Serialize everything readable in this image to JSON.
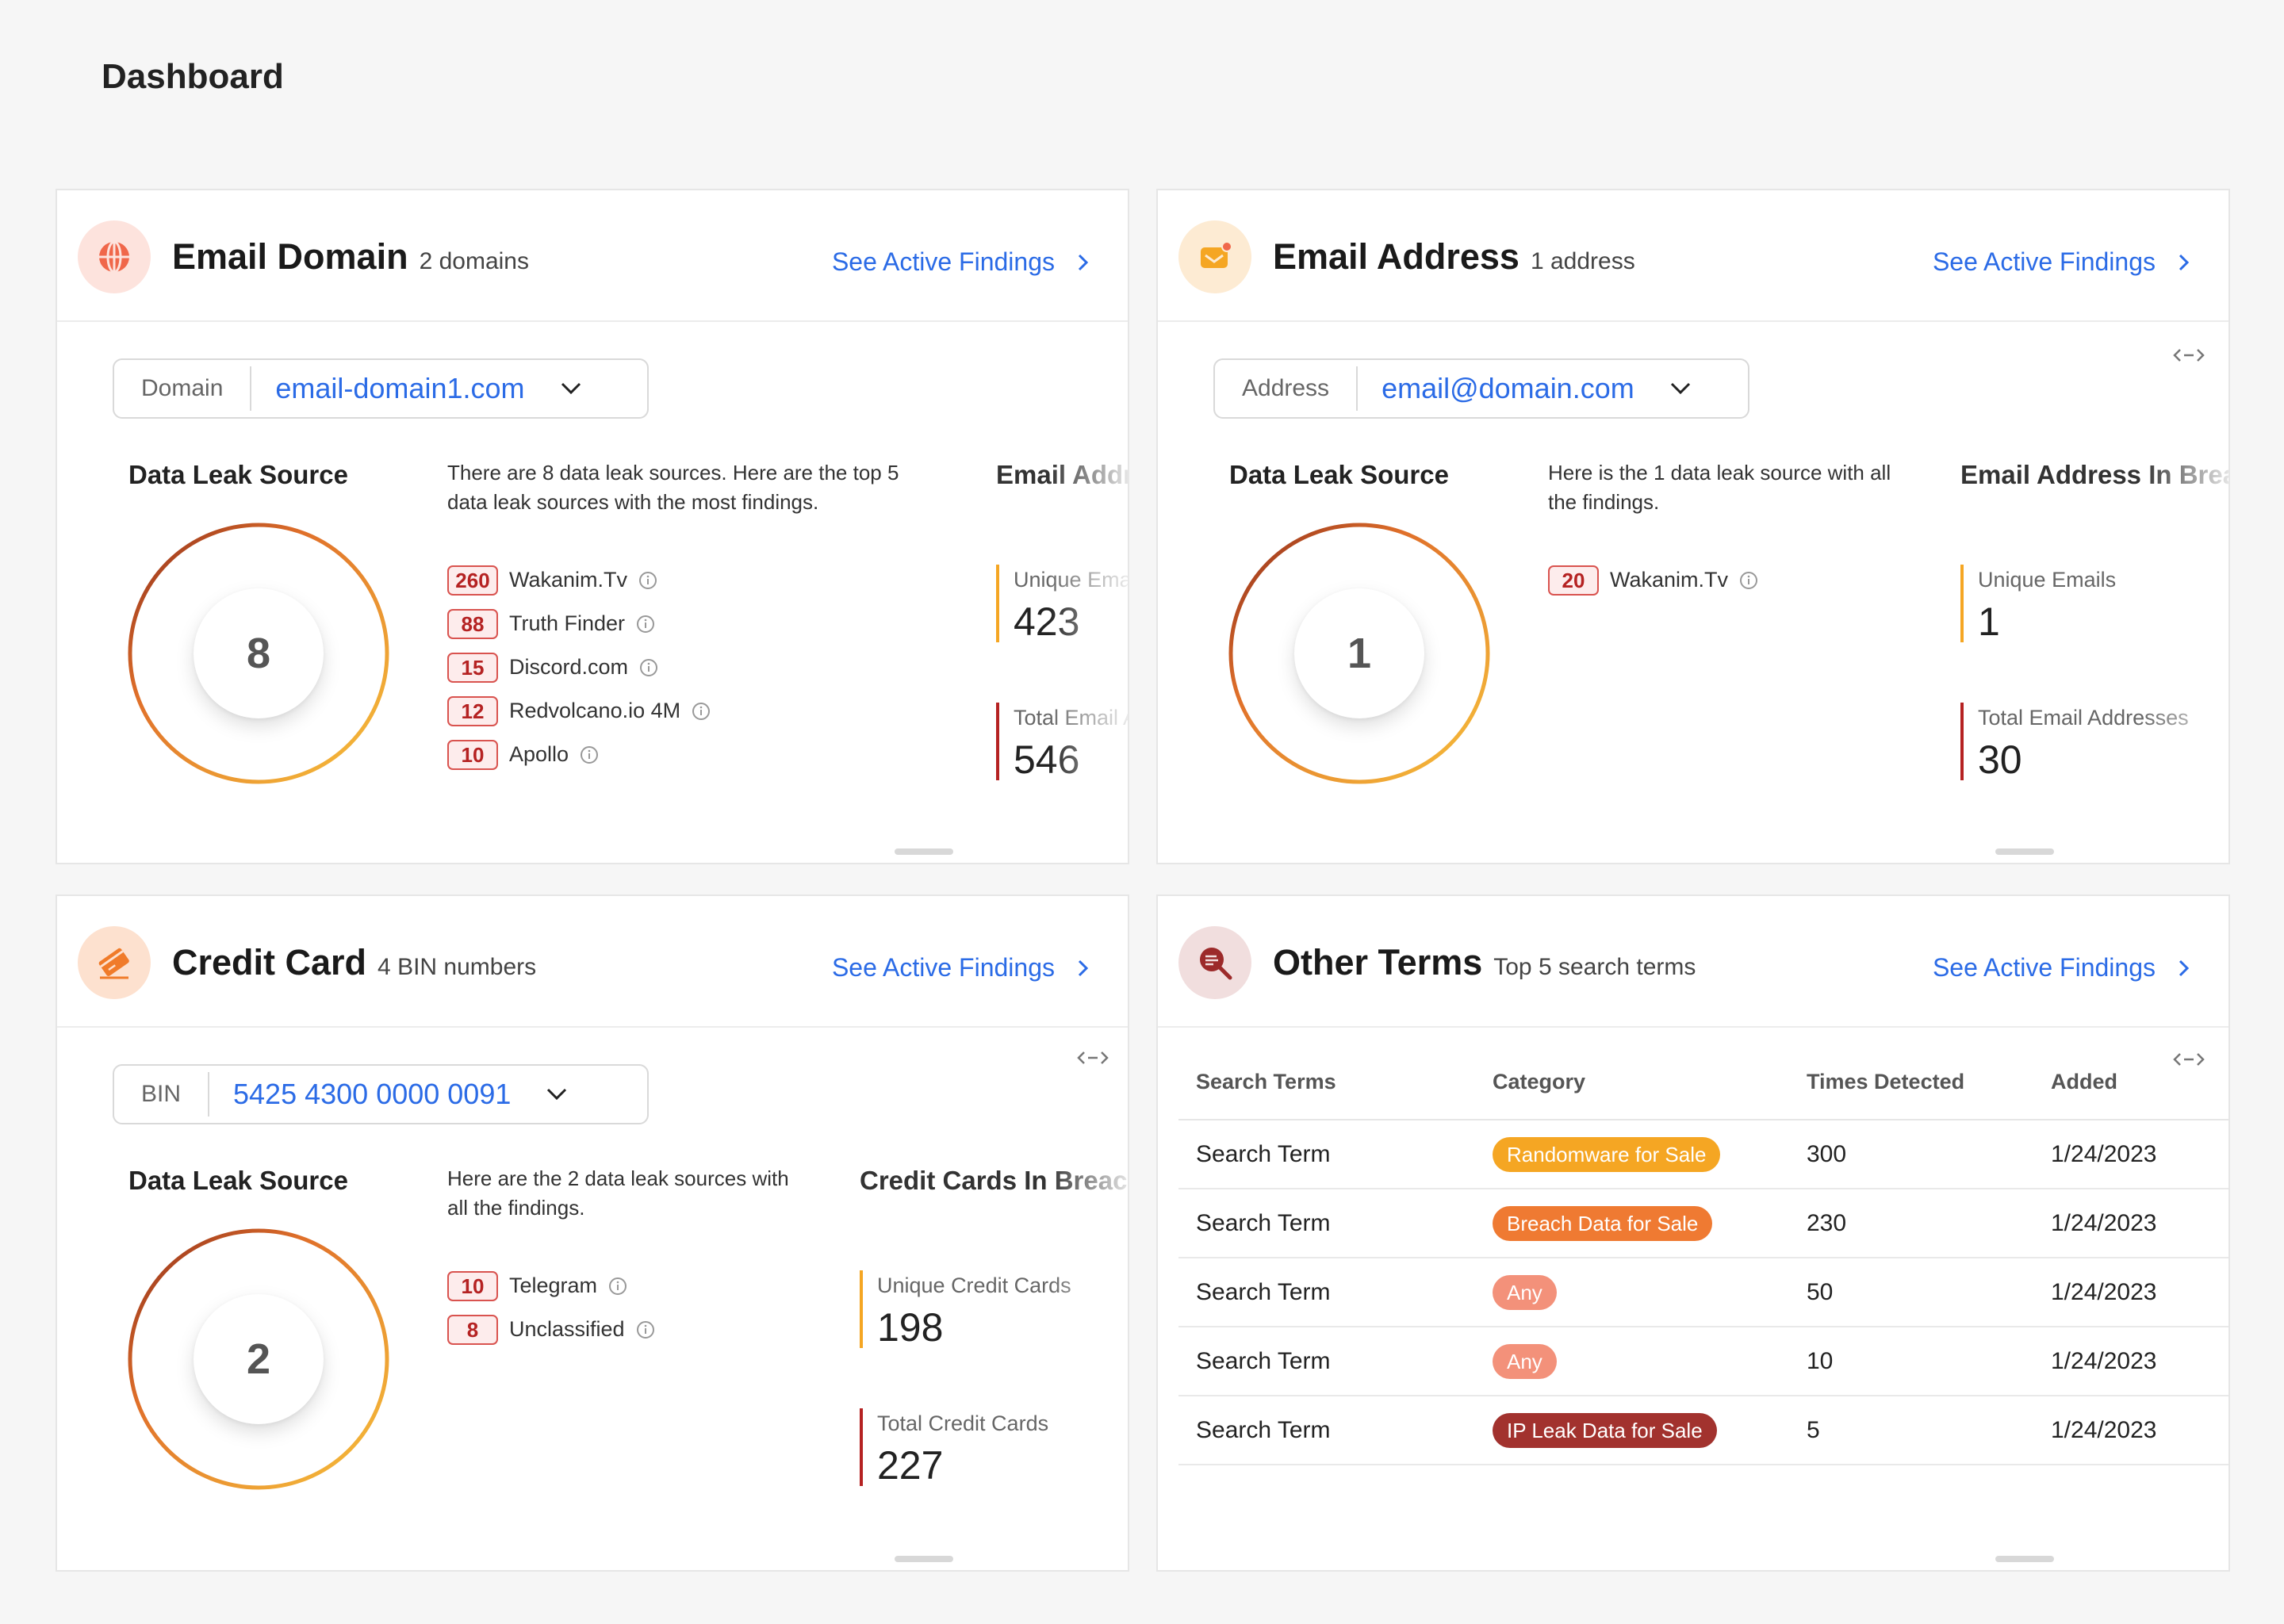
{
  "page": {
    "title": "Dashboard"
  },
  "email_domain": {
    "title": "Email Domain",
    "subtitle": "2 domains",
    "link": "See Active Findings",
    "selector": {
      "label": "Domain",
      "value": "email-domain1.com"
    },
    "section_title": "Data Leak Source",
    "ring_value": "8",
    "description": "There are 8 data leak sources. Here are the top 5 data leak sources with the most findings.",
    "sources": [
      {
        "count": "260",
        "name": "Wakanim.Tv"
      },
      {
        "count": "88",
        "name": "Truth Finder"
      },
      {
        "count": "15",
        "name": "Discord.com"
      },
      {
        "count": "12",
        "name": "Redvolcano.io 4M"
      },
      {
        "count": "10",
        "name": "Apollo"
      }
    ],
    "stats_title": "Email Addresses In Breach",
    "stats": [
      {
        "label": "Unique Emails",
        "value": "423"
      },
      {
        "label": "Total Email Addresses",
        "value": "546"
      }
    ]
  },
  "email_address": {
    "title": "Email Address",
    "subtitle": "1 address",
    "link": "See Active Findings",
    "selector": {
      "label": "Address",
      "value": "email@domain.com"
    },
    "section_title": "Data Leak Source",
    "ring_value": "1",
    "description": "Here is the 1 data leak source with all the findings.",
    "sources": [
      {
        "count": "20",
        "name": "Wakanim.Tv"
      }
    ],
    "stats_title": "Email Address In Breach",
    "stats": [
      {
        "label": "Unique Emails",
        "value": "1"
      },
      {
        "label": "Total Email Addresses",
        "value": "30"
      }
    ]
  },
  "credit_card": {
    "title": "Credit Card",
    "subtitle": "4 BIN numbers",
    "link": "See Active Findings",
    "selector": {
      "label": "BIN",
      "value": "5425 4300 0000 0091"
    },
    "section_title": "Data Leak Source",
    "ring_value": "2",
    "description": "Here are the 2 data leak sources with all the findings.",
    "sources": [
      {
        "count": "10",
        "name": "Telegram"
      },
      {
        "count": "8",
        "name": "Unclassified"
      }
    ],
    "stats_title": "Credit Cards In Breach",
    "stats": [
      {
        "label": "Unique Credit Cards",
        "value": "198"
      },
      {
        "label": "Total Credit Cards",
        "value": "227"
      }
    ]
  },
  "other_terms": {
    "title": "Other Terms",
    "subtitle": "Top 5 search terms",
    "link": "See Active Findings",
    "columns": [
      "Search Terms",
      "Category",
      "Times Detected",
      "Added"
    ],
    "rows": [
      {
        "term": "Search Term",
        "category": "Randomware for Sale",
        "times": "300",
        "added": "1/24/2023",
        "color": "#f5a623"
      },
      {
        "term": "Search Term",
        "category": "Breach Data for Sale",
        "times": "230",
        "added": "1/24/2023",
        "color": "#ef7a32"
      },
      {
        "term": "Search Term",
        "category": "Any",
        "times": "50",
        "added": "1/24/2023",
        "color": "#f3917a"
      },
      {
        "term": "Search Term",
        "category": "Any",
        "times": "10",
        "added": "1/24/2023",
        "color": "#f3917a"
      },
      {
        "term": "Search Term",
        "category": "IP Leak Data for Sale",
        "times": "5",
        "added": "1/24/2023",
        "color": "#a2322e"
      }
    ]
  },
  "colors": {
    "accent_link": "#2b6be6",
    "badge_red": "#d9534f",
    "ring_start": "#8b2a1a",
    "ring_end": "#f7c23b",
    "bar_orange": "#f5a623",
    "bar_red": "#b52222"
  }
}
